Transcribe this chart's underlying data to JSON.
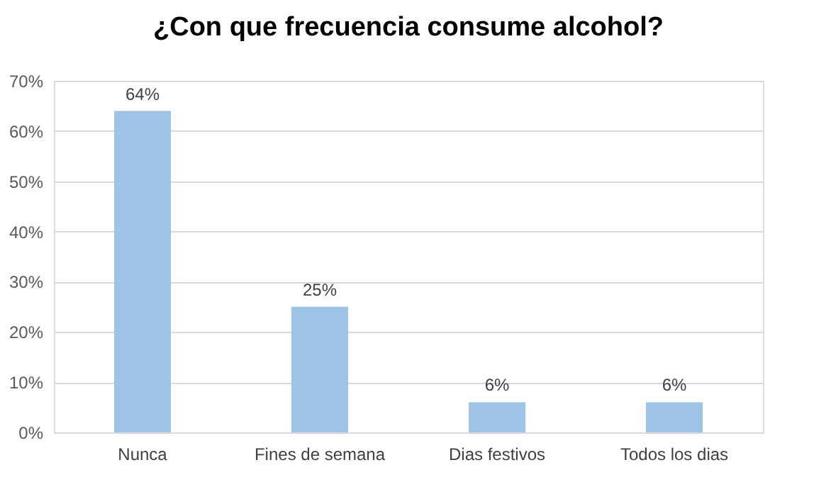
{
  "chart_data": {
    "type": "bar",
    "title": "¿Con que frecuencia consume alcohol?",
    "categories": [
      "Nunca",
      "Fines de semana",
      "Dias festivos",
      "Todos los dias"
    ],
    "values": [
      64,
      25,
      6,
      6
    ],
    "value_labels": [
      "64%",
      "25%",
      "6%",
      "6%"
    ],
    "color": "#9dc3e6",
    "ylim": [
      0,
      70
    ],
    "yticks": [
      {
        "value": 0,
        "label": "0%"
      },
      {
        "value": 10,
        "label": "10%"
      },
      {
        "value": 20,
        "label": "20%"
      },
      {
        "value": 30,
        "label": "30%"
      },
      {
        "value": 40,
        "label": "40%"
      },
      {
        "value": 50,
        "label": "50%"
      },
      {
        "value": 60,
        "label": "60%"
      },
      {
        "value": 70,
        "label": "70%"
      }
    ],
    "grid": "y"
  }
}
